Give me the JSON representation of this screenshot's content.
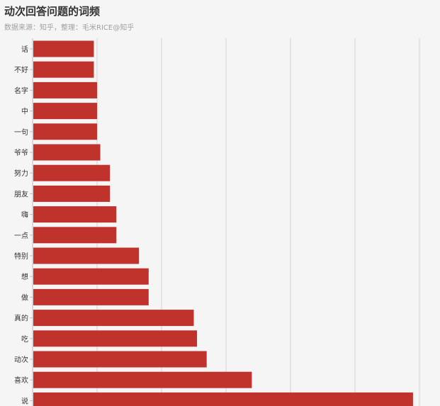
{
  "header": {
    "title": "动次回答问题的词频",
    "subtitle": "数据来源：知乎，整理：毛米RICE@知乎"
  },
  "chart_data": {
    "type": "bar",
    "orientation": "horizontal",
    "title": "动次回答问题的词频",
    "subtitle": "数据来源：知乎，整理：毛米RICE@知乎",
    "xlabel": "",
    "ylabel": "",
    "categories": [
      "话",
      "不好",
      "名字",
      "中",
      "一句",
      "爷爷",
      "努力",
      "朋友",
      "嗨",
      "一点",
      "特别",
      "想",
      "做",
      "真的",
      "吃",
      "动次",
      "喜欢",
      "说"
    ],
    "values": [
      19,
      19,
      20,
      20,
      20,
      21,
      24,
      24,
      26,
      26,
      33,
      36,
      36,
      50,
      51,
      54,
      68,
      118
    ],
    "xlim": [
      0,
      120
    ],
    "x_gridlines": [
      20,
      40,
      60,
      80,
      100,
      120
    ],
    "bar_color": "#c0332d",
    "grid": true,
    "legend": "none"
  }
}
